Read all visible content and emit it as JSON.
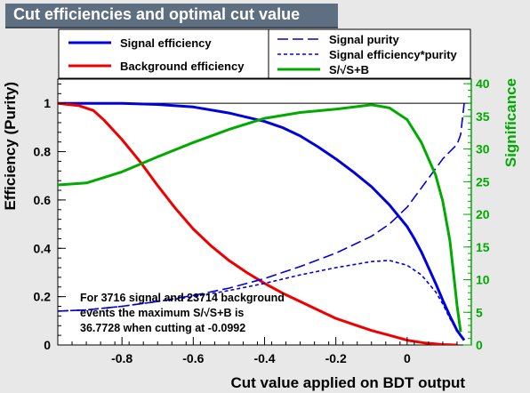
{
  "title": "Cut efficiencies and optimal cut value",
  "chart_data": {
    "type": "line",
    "xlabel": "Cut value applied on BDT output",
    "ylabel": "Efficiency (Purity)",
    "y2label": "Significance",
    "xlim": [
      -0.98,
      0.18
    ],
    "ylim": [
      0,
      1.1
    ],
    "y2lim": [
      0,
      40.7
    ],
    "x_ticks": [
      -0.8,
      -0.6,
      -0.4,
      -0.2,
      0
    ],
    "x_tick_labels": [
      "-0.8",
      "-0.6",
      "-0.4",
      "-0.2",
      "0"
    ],
    "y_ticks": [
      0,
      0.2,
      0.4,
      0.6,
      0.8,
      1
    ],
    "y_tick_labels": [
      "0",
      "0.2",
      "0.4",
      "0.6",
      "0.8",
      "1"
    ],
    "y2_ticks": [
      0,
      5,
      10,
      15,
      20,
      25,
      30,
      35,
      40
    ],
    "y2_tick_labels": [
      "0",
      "5",
      "10",
      "15",
      "20",
      "25",
      "30",
      "35",
      "40"
    ],
    "legend": {
      "placement": "top",
      "col1": [
        "Signal efficiency",
        "Background efficiency"
      ],
      "col2": [
        "Signal purity",
        "Signal efficiency*purity",
        "S/√S+B"
      ]
    },
    "annotation": [
      "For 3716 signal and 23714 background",
      "events the maximum S/√S+B is",
      "36.7728 when cutting at -0.0992"
    ],
    "series": [
      {
        "name": "Signal efficiency",
        "color": "#0000dd",
        "style": "solid",
        "axis": "left",
        "x": [
          -0.98,
          -0.9,
          -0.8,
          -0.7,
          -0.6,
          -0.5,
          -0.4,
          -0.35,
          -0.3,
          -0.25,
          -0.2,
          -0.15,
          -0.1,
          -0.05,
          0,
          0.02,
          0.04,
          0.06,
          0.08,
          0.1,
          0.12,
          0.14,
          0.16
        ],
        "y": [
          1.0,
          1.0,
          1.0,
          0.995,
          0.985,
          0.96,
          0.925,
          0.9,
          0.865,
          0.82,
          0.77,
          0.715,
          0.655,
          0.58,
          0.49,
          0.44,
          0.385,
          0.32,
          0.255,
          0.185,
          0.12,
          0.06,
          0.02
        ]
      },
      {
        "name": "Background efficiency",
        "color": "#ee0000",
        "style": "solid",
        "axis": "left",
        "x": [
          -0.98,
          -0.92,
          -0.88,
          -0.85,
          -0.8,
          -0.75,
          -0.7,
          -0.65,
          -0.6,
          -0.55,
          -0.5,
          -0.45,
          -0.4,
          -0.35,
          -0.3,
          -0.25,
          -0.2,
          -0.15,
          -0.1,
          -0.05,
          0,
          0.05,
          0.1,
          0.14
        ],
        "y": [
          1.0,
          0.99,
          0.97,
          0.93,
          0.85,
          0.76,
          0.66,
          0.565,
          0.48,
          0.41,
          0.35,
          0.3,
          0.255,
          0.215,
          0.18,
          0.145,
          0.11,
          0.085,
          0.06,
          0.04,
          0.02,
          0.008,
          0.002,
          0.0
        ]
      },
      {
        "name": "Signal purity",
        "color": "#0000dd",
        "style": "dashed",
        "axis": "left",
        "x": [
          -0.98,
          -0.9,
          -0.8,
          -0.7,
          -0.6,
          -0.5,
          -0.4,
          -0.3,
          -0.2,
          -0.1,
          -0.05,
          0,
          0.04,
          0.08,
          0.1,
          0.12,
          0.14,
          0.15,
          0.16
        ],
        "y": [
          0.14,
          0.145,
          0.16,
          0.18,
          0.205,
          0.235,
          0.275,
          0.325,
          0.38,
          0.45,
          0.5,
          0.57,
          0.65,
          0.73,
          0.77,
          0.8,
          0.83,
          0.87,
          1.0
        ]
      },
      {
        "name": "Signal efficiency*purity",
        "color": "#0000dd",
        "style": "dotted",
        "axis": "left",
        "x": [
          -0.98,
          -0.9,
          -0.8,
          -0.7,
          -0.6,
          -0.5,
          -0.4,
          -0.3,
          -0.2,
          -0.1,
          -0.05,
          0,
          0.04,
          0.08,
          0.1,
          0.12,
          0.14,
          0.16
        ],
        "y": [
          0.14,
          0.145,
          0.16,
          0.18,
          0.2,
          0.225,
          0.255,
          0.29,
          0.32,
          0.345,
          0.35,
          0.33,
          0.29,
          0.22,
          0.17,
          0.11,
          0.06,
          0.02
        ]
      },
      {
        "name": "S/√S+B",
        "color": "#00aa00",
        "style": "solid",
        "axis": "right",
        "x": [
          -0.98,
          -0.9,
          -0.8,
          -0.7,
          -0.6,
          -0.5,
          -0.4,
          -0.3,
          -0.2,
          -0.1,
          -0.05,
          0,
          0.04,
          0.08,
          0.1,
          0.12,
          0.13,
          0.14,
          0.15
        ],
        "y": [
          24.5,
          24.8,
          26.5,
          28.8,
          31.0,
          33.0,
          34.7,
          35.6,
          36.1,
          36.77,
          36.3,
          34.5,
          31.0,
          26.0,
          22.0,
          16.0,
          11.0,
          6.0,
          2.0
        ]
      }
    ]
  }
}
